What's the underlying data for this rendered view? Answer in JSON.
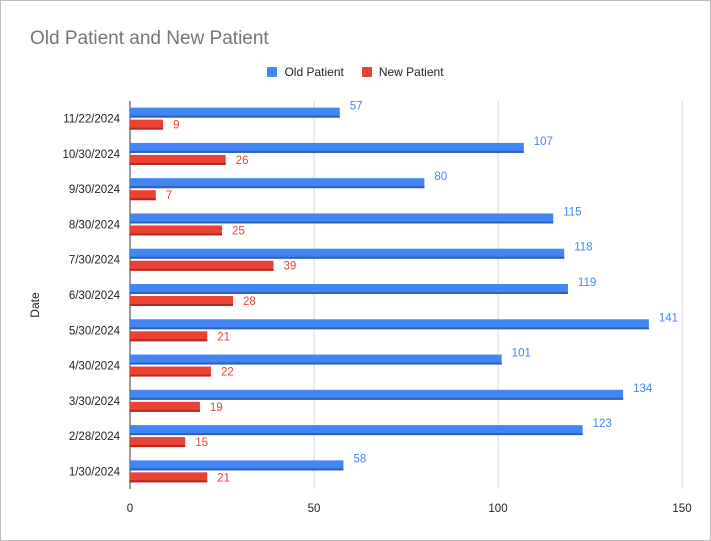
{
  "chart_data": {
    "type": "bar",
    "orientation": "horizontal",
    "title": "Old Patient and New Patient",
    "ylabel": "Date",
    "xlabel": "",
    "categories": [
      "11/22/2024",
      "10/30/2024",
      "9/30/2024",
      "8/30/2024",
      "7/30/2024",
      "6/30/2024",
      "5/30/2024",
      "4/30/2024",
      "3/30/2024",
      "2/28/2024",
      "1/30/2024"
    ],
    "series": [
      {
        "name": "Old Patient",
        "color": "#4285f4",
        "values": [
          57,
          107,
          80,
          115,
          118,
          119,
          141,
          101,
          134,
          123,
          58
        ]
      },
      {
        "name": "New Patient",
        "color": "#ea4335",
        "values": [
          9,
          26,
          7,
          25,
          39,
          28,
          21,
          22,
          19,
          15,
          21
        ]
      }
    ],
    "xlim": [
      0,
      150
    ],
    "xticks": [
      "0",
      "50",
      "100",
      "150"
    ],
    "grid": true,
    "legend": "top"
  }
}
